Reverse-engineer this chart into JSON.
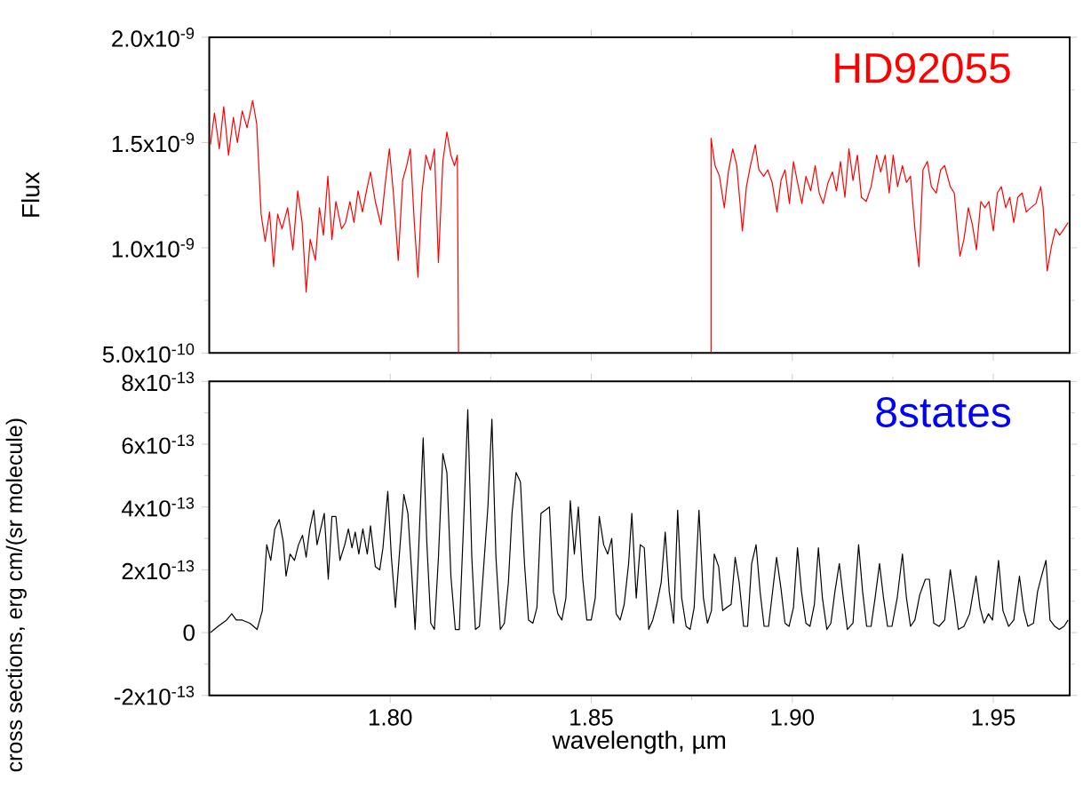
{
  "chart_data": [
    {
      "type": "line",
      "ylabel": "Flux",
      "xlim": [
        1.755,
        1.969
      ],
      "ylim": [
        5e-10,
        2e-09
      ],
      "xticks": [
        {
          "value": 1.8,
          "label": null
        },
        {
          "value": 1.85,
          "label": null
        },
        {
          "value": 1.9,
          "label": null
        },
        {
          "value": 1.95,
          "label": null
        }
      ],
      "yticks": [
        {
          "value": 5e-10,
          "label": "5.0x10$^{-10}$"
        },
        {
          "value": 1e-09,
          "label": "1.0x10$^{-9}$"
        },
        {
          "value": 1.5e-09,
          "label": "1.5x10$^{-9}$"
        },
        {
          "value": 2e-09,
          "label": "2.0x10$^{-9}$"
        }
      ],
      "tick_labels": "y",
      "grid": false,
      "legend": false,
      "marker": "none",
      "line_style": "solid",
      "series": [
        {
          "name": "HD92055",
          "color": "#ff0000",
          "x": [
            1.7553,
            1.7563,
            1.7575,
            1.7586,
            1.7598,
            1.761,
            1.762,
            1.7632,
            1.7644,
            1.7658,
            1.7668,
            1.7679,
            1.7689,
            1.77,
            1.771,
            1.772,
            1.7731,
            1.7745,
            1.7758,
            1.777,
            1.7781,
            1.7791,
            1.7801,
            1.7814,
            1.7824,
            1.7834,
            1.7845,
            1.7855,
            1.7865,
            1.7879,
            1.7889,
            1.79,
            1.791,
            1.792,
            1.7931,
            1.7941,
            1.7951,
            1.7963,
            1.7977,
            1.7988,
            1.7998,
            1.8008,
            1.802,
            1.8031,
            1.8041,
            1.805,
            1.806,
            1.8069,
            1.8079,
            1.8089,
            1.81,
            1.811,
            1.812,
            1.8131,
            1.8141,
            1.8151,
            1.816,
            1.8167,
            1.817,
            1.848,
            1.8798,
            1.8798,
            1.8808,
            1.8819,
            1.8831,
            1.8841,
            1.8852,
            1.8862,
            1.8876,
            1.8886,
            1.8896,
            1.8908,
            1.8917,
            1.8929,
            1.8939,
            1.895,
            1.8962,
            1.8972,
            1.8982,
            1.8993,
            1.9003,
            1.9013,
            1.9024,
            1.9034,
            1.9046,
            1.9057,
            1.9067,
            1.9077,
            1.9089,
            1.91,
            1.911,
            1.912,
            1.9131,
            1.9141,
            1.9151,
            1.9162,
            1.9172,
            1.9184,
            1.9196,
            1.921,
            1.922,
            1.9231,
            1.9241,
            1.9251,
            1.9262,
            1.9274,
            1.9284,
            1.9294,
            1.9305,
            1.9315,
            1.9325,
            1.9336,
            1.9346,
            1.9358,
            1.9369,
            1.9379,
            1.9393,
            1.9403,
            1.9417,
            1.9427,
            1.9438,
            1.9448,
            1.9458,
            1.9469,
            1.9479,
            1.9489,
            1.95,
            1.951,
            1.952,
            1.9531,
            1.9541,
            1.9551,
            1.9561,
            1.9572,
            1.9582,
            1.9593,
            1.9606,
            1.9618,
            1.9624,
            1.9634,
            1.9645,
            1.9655,
            1.9665,
            1.9676,
            1.9686
          ],
          "values": [
            1.49e-09,
            1.64e-09,
            1.47e-09,
            1.67e-09,
            1.44e-09,
            1.62e-09,
            1.5e-09,
            1.65e-09,
            1.57e-09,
            1.7e-09,
            1.59e-09,
            1.16e-09,
            1.03e-09,
            1.17e-09,
            9.1e-10,
            1.16e-09,
            1.09e-09,
            1.19e-09,
            9.9e-10,
            1.27e-09,
            1.12e-09,
            7.9e-10,
            1.04e-09,
            9.4e-10,
            1.19e-09,
            1.06e-09,
            1.34e-09,
            1.04e-09,
            1.22e-09,
            1.09e-09,
            1.12e-09,
            1.22e-09,
            1.12e-09,
            1.27e-09,
            1.17e-09,
            1.27e-09,
            1.36e-09,
            1.22e-09,
            1.11e-09,
            1.31e-09,
            1.47e-09,
            1.26e-09,
            9.4e-10,
            1.32e-09,
            1.39e-09,
            1.47e-09,
            1.12e-09,
            8.6e-10,
            1.26e-09,
            1.44e-09,
            1.37e-09,
            1.47e-09,
            9.3e-10,
            1.41e-09,
            1.55e-09,
            1.44e-09,
            1.39e-09,
            1.44e-09,
            5e-10,
            null,
            5e-10,
            1.52e-09,
            1.39e-09,
            1.34e-09,
            1.19e-09,
            1.36e-09,
            1.47e-09,
            1.39e-09,
            1.08e-09,
            1.29e-09,
            1.39e-09,
            1.49e-09,
            1.37e-09,
            1.34e-09,
            1.37e-09,
            1.31e-09,
            1.17e-09,
            1.32e-09,
            1.37e-09,
            1.21e-09,
            1.41e-09,
            1.31e-09,
            1.21e-09,
            1.34e-09,
            1.27e-09,
            1.39e-09,
            1.26e-09,
            1.21e-09,
            1.31e-09,
            1.36e-09,
            1.27e-09,
            1.41e-09,
            1.24e-09,
            1.47e-09,
            1.32e-09,
            1.44e-09,
            1.24e-09,
            1.22e-09,
            1.29e-09,
            1.44e-09,
            1.36e-09,
            1.44e-09,
            1.26e-09,
            1.44e-09,
            1.29e-09,
            1.39e-09,
            1.31e-09,
            1.34e-09,
            1.09e-09,
            9.1e-10,
            1.37e-09,
            1.41e-09,
            1.29e-09,
            1.26e-09,
            1.37e-09,
            1.39e-09,
            1.29e-09,
            1.26e-09,
            9.6e-10,
            1.04e-09,
            1.19e-09,
            1.11e-09,
            9.9e-10,
            1.22e-09,
            1.19e-09,
            1.22e-09,
            1.08e-09,
            1.26e-09,
            1.29e-09,
            1.19e-09,
            1.24e-09,
            1.12e-09,
            1.24e-09,
            1.26e-09,
            1.17e-09,
            1.19e-09,
            1.21e-09,
            1.29e-09,
            1.19e-09,
            8.9e-10,
            1.01e-09,
            1.09e-09,
            1.06e-09,
            1.09e-09,
            1.12e-09
          ]
        }
      ]
    },
    {
      "type": "line",
      "xlabel": "wavelength, µm",
      "ylabel": "cross sections, erg cm/(sr molecule)",
      "annotations": [
        "8states"
      ],
      "xlim": [
        1.755,
        1.969
      ],
      "ylim": [
        -2e-13,
        8e-13
      ],
      "xticks": [
        {
          "value": 1.8,
          "label": "1.80"
        },
        {
          "value": 1.85,
          "label": "1.85"
        },
        {
          "value": 1.9,
          "label": "1.90"
        },
        {
          "value": 1.95,
          "label": "1.95"
        }
      ],
      "yticks": [
        {
          "value": -2e-13,
          "label": "-2x10$^{-13}$"
        },
        0,
        {
          "value": 2e-13,
          "label": "2x10$^{-13}$"
        },
        {
          "value": 4e-13,
          "label": "4x10$^{-13}$"
        },
        {
          "value": 6e-13,
          "label": "6x10$^{-13}$"
        },
        {
          "value": 8e-13,
          "label": "8x10$^{-13}$"
        }
      ],
      "grid": false,
      "legend": false,
      "marker": "none",
      "line_style": "solid",
      "series": [
        {
          "color": "#000000",
          "x": [
            1.7553,
            1.7572,
            1.7593,
            1.7606,
            1.7617,
            1.7632,
            1.7651,
            1.7669,
            1.7682,
            1.7693,
            1.7703,
            1.7713,
            1.7724,
            1.7734,
            1.7741,
            1.7751,
            1.7762,
            1.7772,
            1.7782,
            1.7791,
            1.78,
            1.781,
            1.7818,
            1.7827,
            1.7836,
            1.7846,
            1.7855,
            1.7865,
            1.7875,
            1.7887,
            1.7896,
            1.7905,
            1.7913,
            1.7922,
            1.7932,
            1.7943,
            1.7951,
            1.7963,
            1.7974,
            1.7982,
            1.7994,
            1.8003,
            1.8013,
            1.802,
            1.8034,
            1.8044,
            1.8053,
            1.8062,
            1.807,
            1.8082,
            1.8091,
            1.8101,
            1.811,
            1.812,
            1.8131,
            1.8141,
            1.8151,
            1.8162,
            1.8172,
            1.8182,
            1.8193,
            1.8203,
            1.8212,
            1.8222,
            1.8232,
            1.8243,
            1.8253,
            1.8263,
            1.8274,
            1.8284,
            1.8294,
            1.8303,
            1.8313,
            1.8324,
            1.8334,
            1.8344,
            1.8355,
            1.8365,
            1.8375,
            1.8386,
            1.8396,
            1.8406,
            1.8417,
            1.8427,
            1.8437,
            1.8448,
            1.8458,
            1.8468,
            1.8479,
            1.8489,
            1.85,
            1.851,
            1.852,
            1.8531,
            1.8541,
            1.8551,
            1.8562,
            1.8572,
            1.8582,
            1.8593,
            1.8601,
            1.8612,
            1.8622,
            1.8632,
            1.8643,
            1.8653,
            1.8663,
            1.8674,
            1.8684,
            1.8694,
            1.8705,
            1.8715,
            1.8725,
            1.8736,
            1.8746,
            1.8756,
            1.8768,
            1.8779,
            1.8789,
            1.8799,
            1.8806,
            1.8817,
            1.8827,
            1.8837,
            1.8848,
            1.8858,
            1.8868,
            1.8879,
            1.8889,
            1.8899,
            1.891,
            1.892,
            1.893,
            1.8941,
            1.8951,
            1.8961,
            1.8972,
            1.8982,
            1.8992,
            1.9003,
            1.9013,
            1.9023,
            1.9034,
            1.9044,
            1.9055,
            1.9065,
            1.9075,
            1.9086,
            1.9096,
            1.9106,
            1.9117,
            1.9127,
            1.9137,
            1.9151,
            1.9165,
            1.9175,
            1.9185,
            1.9196,
            1.9206,
            1.9217,
            1.9227,
            1.9237,
            1.9248,
            1.9261,
            1.9274,
            1.9284,
            1.9294,
            1.9305,
            1.9317,
            1.9331,
            1.9341,
            1.9352,
            1.9365,
            1.9379,
            1.9393,
            1.9403,
            1.9413,
            1.9427,
            1.9441,
            1.9457,
            1.9467,
            1.9477,
            1.9488,
            1.9498,
            1.9513,
            1.9524,
            1.9538,
            1.9551,
            1.9565,
            1.9576,
            1.9586,
            1.96,
            1.961,
            1.962,
            1.9631,
            1.9641,
            1.9653,
            1.9664,
            1.9676,
            1.9686
          ],
          "values": [
            0,
            2e-14,
            4e-14,
            6e-14,
            4e-14,
            4e-14,
            3e-14,
            1e-14,
            7e-14,
            2.8e-13,
            2.3e-13,
            3.3e-13,
            3.6e-13,
            2.9e-13,
            1.8e-13,
            2.5e-13,
            2.3e-13,
            2.8e-13,
            3.1e-13,
            2.4e-13,
            3.3e-13,
            3.9e-13,
            2.8e-13,
            3.3e-13,
            3.8e-13,
            1.7e-13,
            3.7e-13,
            3.7e-13,
            2.3e-13,
            2.8e-13,
            3.3e-13,
            2.7e-13,
            3.2e-13,
            2.5e-13,
            3.3e-13,
            2.5e-13,
            3.4e-13,
            2.1e-13,
            2e-13,
            2.7e-13,
            4.5e-13,
            2.4e-13,
            8e-14,
            2e-13,
            4.4e-13,
            3.8e-13,
            2e-13,
            1e-14,
            2.4e-13,
            6.2e-13,
            2.9e-13,
            3e-14,
            1e-14,
            2.4e-13,
            5.7e-13,
            5.1e-13,
            1.8e-13,
            1e-14,
            1e-14,
            3.3e-13,
            7.1e-13,
            2.4e-13,
            1e-14,
            2e-14,
            2e-13,
            4e-13,
            6.8e-13,
            2.4e-13,
            1e-14,
            3e-14,
            1.6e-13,
            3.8e-13,
            5.1e-13,
            4.8e-13,
            2.2e-13,
            4e-14,
            3e-14,
            8e-14,
            3.8e-13,
            3.9e-13,
            4e-13,
            1.3e-13,
            6e-14,
            4e-14,
            1.1e-13,
            4.2e-13,
            2.5e-13,
            4e-13,
            1.7e-13,
            4e-14,
            4e-14,
            1.1e-13,
            3.7e-13,
            2.8e-13,
            2.5e-13,
            3e-13,
            6e-14,
            4e-14,
            9e-14,
            2.2e-13,
            3.8e-13,
            1.1e-13,
            2.8e-13,
            2.7e-13,
            1e-14,
            4e-14,
            9e-14,
            1.6e-13,
            3.2e-13,
            1.3e-13,
            3e-14,
            3.9e-13,
            1.1e-13,
            2e-14,
            1e-14,
            8e-14,
            3.9e-13,
            1.1e-13,
            3e-14,
            7e-14,
            2.5e-13,
            2.1e-13,
            7e-14,
            8e-14,
            9e-14,
            2.4e-13,
            1.6e-13,
            2e-14,
            2e-14,
            2.2e-13,
            2.8e-13,
            1.3e-13,
            2e-14,
            2e-14,
            1.3e-13,
            2.4e-13,
            1.4e-13,
            3e-14,
            2e-14,
            8e-14,
            2.7e-13,
            1.3e-13,
            3e-14,
            2e-14,
            9e-14,
            2.7e-13,
            1.1e-13,
            1e-14,
            3e-14,
            1.3e-13,
            2.2e-13,
            1.1e-13,
            1e-14,
            3e-14,
            2.8e-13,
            1.3e-13,
            2e-14,
            2e-14,
            1.1e-13,
            2.2e-13,
            1.1e-13,
            2e-14,
            2e-14,
            1.1e-13,
            2.5e-13,
            1.1e-13,
            2e-14,
            4e-14,
            1.2e-13,
            1.7e-13,
            1.7e-13,
            3e-14,
            2e-14,
            4e-14,
            2e-13,
            1.1e-13,
            1e-14,
            2e-14,
            6e-14,
            1.8e-13,
            8e-14,
            3e-14,
            6e-14,
            4e-14,
            2.3e-13,
            7e-14,
            2e-14,
            4e-14,
            1.8e-13,
            7e-14,
            2e-14,
            3e-14,
            1.3e-13,
            1.8e-13,
            2.3e-13,
            4e-14,
            2e-14,
            1e-14,
            2e-14,
            4e-14
          ]
        }
      ]
    }
  ]
}
